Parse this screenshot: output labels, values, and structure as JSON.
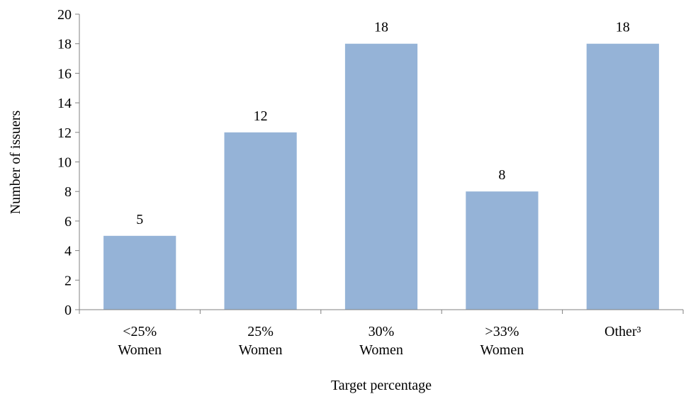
{
  "chart_data": {
    "type": "bar",
    "categories": [
      [
        "<25%",
        "Women"
      ],
      [
        "25%",
        "Women"
      ],
      [
        "30%",
        "Women"
      ],
      [
        ">33%",
        "Women"
      ],
      [
        "Other³"
      ]
    ],
    "values": [
      5,
      12,
      18,
      8,
      18
    ],
    "data_labels": [
      "5",
      "12",
      "18",
      "8",
      "18"
    ],
    "xlabel": "Target percentage",
    "ylabel": "Number of issuers",
    "ylim": [
      0,
      20
    ],
    "yticks": [
      "0",
      "2",
      "4",
      "6",
      "8",
      "10",
      "12",
      "14",
      "16",
      "18",
      "20"
    ],
    "grid": false,
    "legend": "none",
    "bar_color": "#95B3D7",
    "axis_color": "#808080"
  }
}
